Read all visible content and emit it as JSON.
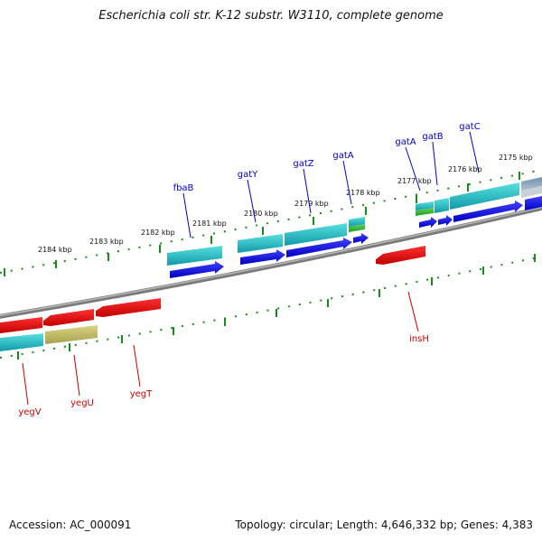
{
  "title": "Escherichia coli str. K-12 substr. W3110, complete genome",
  "footer": {
    "accession": "Accession: AC_000091",
    "topology": "Topology: circular; Length: 4,646,332 bp; Genes: 4,383"
  },
  "kbp_labels": [
    "2184 kbp",
    "2183 kbp",
    "2182 kbp",
    "2181 kbp",
    "2180 kbp",
    "2179 kbp",
    "2178 kbp",
    "2177 kbp",
    "2176 kbp",
    "2175 kbp"
  ],
  "genes_forward": [
    "fbaB",
    "gatY",
    "gatZ",
    "gatA",
    "gatA",
    "gatB",
    "gatC"
  ],
  "genes_reverse": [
    "yegV",
    "yegU",
    "yegT",
    "insH"
  ],
  "colors": {
    "forward_gene": "#0000dd",
    "reverse_gene": "#dd0000",
    "cds_teal": "#20c8c8",
    "backbone": "#808080",
    "tick": "#1a8a1a"
  }
}
